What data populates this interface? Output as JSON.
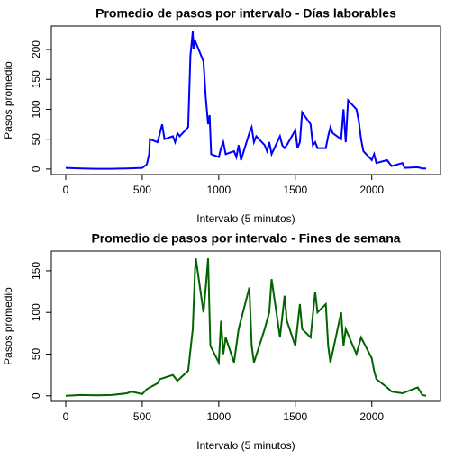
{
  "chart_data": [
    {
      "type": "line",
      "title": "Promedio de pasos por intervalo - Días laborables",
      "xlabel": "Intervalo (5 minutos)",
      "ylabel": "Pasos promedio",
      "color": "#0000ff",
      "x": [
        0,
        100,
        200,
        300,
        400,
        500,
        530,
        545,
        550,
        600,
        615,
        630,
        645,
        700,
        715,
        730,
        745,
        800,
        815,
        830,
        835,
        845,
        900,
        915,
        930,
        940,
        950,
        1000,
        1015,
        1030,
        1045,
        1100,
        1115,
        1130,
        1145,
        1200,
        1215,
        1230,
        1245,
        1300,
        1315,
        1330,
        1345,
        1400,
        1415,
        1430,
        1445,
        1500,
        1515,
        1530,
        1545,
        1600,
        1615,
        1630,
        1645,
        1700,
        1715,
        1730,
        1745,
        1800,
        1815,
        1830,
        1845,
        1900,
        1915,
        1930,
        1945,
        2000,
        2015,
        2030,
        2100,
        2130,
        2200,
        2215,
        2300,
        2330,
        2355
      ],
      "values": [
        2,
        1,
        0.5,
        0.5,
        1,
        2,
        8,
        25,
        50,
        45,
        60,
        75,
        50,
        55,
        45,
        60,
        55,
        70,
        190,
        230,
        200,
        215,
        180,
        120,
        75,
        90,
        25,
        20,
        35,
        45,
        25,
        30,
        20,
        40,
        15,
        60,
        70,
        45,
        55,
        40,
        30,
        45,
        25,
        55,
        40,
        35,
        40,
        65,
        35,
        45,
        95,
        75,
        40,
        45,
        35,
        35,
        55,
        70,
        60,
        50,
        100,
        45,
        115,
        100,
        80,
        50,
        30,
        15,
        25,
        10,
        15,
        5,
        10,
        2,
        3,
        1,
        1
      ],
      "xlim": [
        -94.2,
        2449.2
      ],
      "ylim": [
        -9.2,
        239.2
      ],
      "xticks": [
        0,
        500,
        1000,
        1500,
        2000
      ],
      "yticks": [
        0,
        50,
        100,
        150,
        200
      ]
    },
    {
      "type": "line",
      "title": "Promedio de pasos por intervalo - Fines de semana",
      "xlabel": "Intervalo (5 minutos)",
      "ylabel": "Pasos promedio",
      "color": "#006400",
      "x": [
        0,
        100,
        200,
        300,
        400,
        430,
        500,
        530,
        600,
        615,
        700,
        730,
        800,
        830,
        845,
        850,
        900,
        915,
        930,
        945,
        1000,
        1015,
        1030,
        1045,
        1100,
        1130,
        1200,
        1215,
        1230,
        1300,
        1330,
        1345,
        1400,
        1430,
        1445,
        1500,
        1530,
        1545,
        1600,
        1630,
        1645,
        1700,
        1715,
        1730,
        1800,
        1815,
        1830,
        1900,
        1930,
        2000,
        2015,
        2030,
        2100,
        2130,
        2200,
        2300,
        2330,
        2355
      ],
      "values": [
        0,
        1,
        0.5,
        1,
        3,
        5,
        2,
        8,
        15,
        20,
        25,
        18,
        30,
        80,
        150,
        165,
        100,
        130,
        165,
        60,
        40,
        90,
        50,
        70,
        40,
        80,
        130,
        60,
        40,
        80,
        100,
        140,
        70,
        120,
        90,
        60,
        110,
        80,
        70,
        125,
        100,
        110,
        60,
        40,
        100,
        60,
        80,
        50,
        70,
        45,
        30,
        20,
        10,
        5,
        3,
        10,
        1,
        0
      ],
      "xlim": [
        -94.2,
        2449.2
      ],
      "ylim": [
        -6.7,
        173.7
      ],
      "xticks": [
        0,
        500,
        1000,
        1500,
        2000
      ],
      "yticks": [
        0,
        50,
        100,
        150
      ]
    }
  ]
}
